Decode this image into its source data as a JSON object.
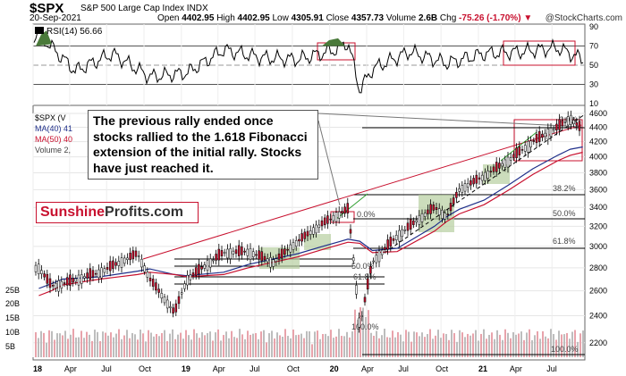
{
  "header": {
    "symbol": "$SPX",
    "name": "S&P 500 Large Cap Index",
    "exchange": "INDX",
    "date": "20-Sep-2021",
    "watermark": "@StockCharts.com",
    "open_label": "Open",
    "open": "4402.95",
    "high_label": "High",
    "high": "4402.95",
    "low_label": "Low",
    "low": "4305.91",
    "close_label": "Close",
    "close": "4357.73",
    "volume_label": "Volume",
    "volume": "2.6B",
    "chg_label": "Chg",
    "chg": "-75.26 (-1.70%)"
  },
  "legend": {
    "rsi": "RSI(14) 56.66",
    "price": "$SPX (V",
    "ma40": "MA(40) 41",
    "ma50": "MA(50) 40",
    "volume": "Volume 2,"
  },
  "annotation": {
    "note": "The previous rally ended once stocks rallied to the 1.618 Fibonacci extension of the initial rally. Stocks have just reached it."
  },
  "brand": {
    "part1": "Sunshine",
    "part2": "Profits.com"
  },
  "colors": {
    "price": "#000000",
    "ma40": "#1f2f8a",
    "ma50": "#c8102e",
    "volume_up": "#bdbdbd",
    "volume_down": "#e8a3ab",
    "fib_box": "#c8102e",
    "trend": "#2e9e2e",
    "zone": "#b7cf9f"
  },
  "chart_data": [
    {
      "type": "line",
      "title": "RSI(14) 56.66",
      "ylim": [
        10,
        90
      ],
      "yticks": [
        10,
        30,
        50,
        70,
        90
      ],
      "reference_lines": [
        30,
        50,
        70
      ],
      "x": [
        "2018-01",
        "2018-04",
        "2018-07",
        "2018-10",
        "2019-01",
        "2019-04",
        "2019-07",
        "2019-10",
        "2020-01",
        "2020-02",
        "2020-03",
        "2020-04",
        "2020-07",
        "2020-10",
        "2021-01",
        "2021-04",
        "2021-07",
        "2021-09"
      ],
      "series": [
        {
          "name": "RSI(14)",
          "values": [
            82,
            44,
            62,
            38,
            42,
            66,
            58,
            56,
            66,
            74,
            24,
            46,
            64,
            52,
            62,
            64,
            68,
            56
          ]
        }
      ]
    },
    {
      "type": "line",
      "xlabel": "",
      "ylabel": "",
      "ylim": [
        2100,
        4600
      ],
      "yticks": [
        2200,
        2400,
        2600,
        2800,
        3000,
        3200,
        3400,
        3600,
        3800,
        4000,
        4200,
        4400,
        4600
      ],
      "x_ticks": [
        "18",
        "Apr",
        "Jul",
        "Oct",
        "19",
        "Apr",
        "Jul",
        "Oct",
        "20",
        "Apr",
        "Jul",
        "Oct",
        "21",
        "Apr",
        "Jul"
      ],
      "x_tick_dates": [
        "2018-01",
        "2018-04",
        "2018-07",
        "2018-10",
        "2019-01",
        "2019-04",
        "2019-07",
        "2019-10",
        "2020-01",
        "2020-04",
        "2020-07",
        "2020-10",
        "2021-01",
        "2021-04",
        "2021-07"
      ],
      "x": [
        "2018-01",
        "2018-02",
        "2018-03",
        "2018-06",
        "2018-09",
        "2018-10",
        "2018-12",
        "2019-01",
        "2019-04",
        "2019-06",
        "2019-08",
        "2019-10",
        "2019-12",
        "2020-02",
        "2020-03",
        "2020-04",
        "2020-06",
        "2020-09",
        "2020-10",
        "2020-11",
        "2021-01",
        "2021-03",
        "2021-05",
        "2021-07",
        "2021-08",
        "2021-09"
      ],
      "series": [
        {
          "name": "$SPX",
          "values": [
            2800,
            2640,
            2660,
            2760,
            2930,
            2700,
            2420,
            2700,
            2940,
            2950,
            2850,
            3050,
            3230,
            3380,
            2300,
            2850,
            3100,
            3400,
            3300,
            3600,
            3760,
            3950,
            4200,
            4400,
            4530,
            4357
          ]
        },
        {
          "name": "MA(40)",
          "values": [
            2620,
            2660,
            2700,
            2720,
            2770,
            2790,
            2740,
            2730,
            2760,
            2830,
            2880,
            2930,
            3000,
            3070,
            3050,
            2960,
            2980,
            3200,
            3300,
            3380,
            3480,
            3650,
            3850,
            4020,
            4100,
            4130
          ]
        },
        {
          "name": "MA(50)",
          "values": [
            2560,
            2600,
            2650,
            2700,
            2740,
            2760,
            2740,
            2720,
            2740,
            2800,
            2850,
            2900,
            2970,
            3040,
            3030,
            2940,
            2950,
            3150,
            3250,
            3330,
            3430,
            3590,
            3780,
            3950,
            4020,
            4060
          ]
        }
      ],
      "fibonacci_levels": [
        "0.0%",
        "38.2%",
        "50.0%",
        "61.8%",
        "100.0%",
        "0.0%",
        "50.0%",
        "61.8%",
        "100.0%"
      ],
      "volume_yticks": [
        "5B",
        "10B",
        "15B",
        "20B",
        "25B"
      ]
    }
  ]
}
